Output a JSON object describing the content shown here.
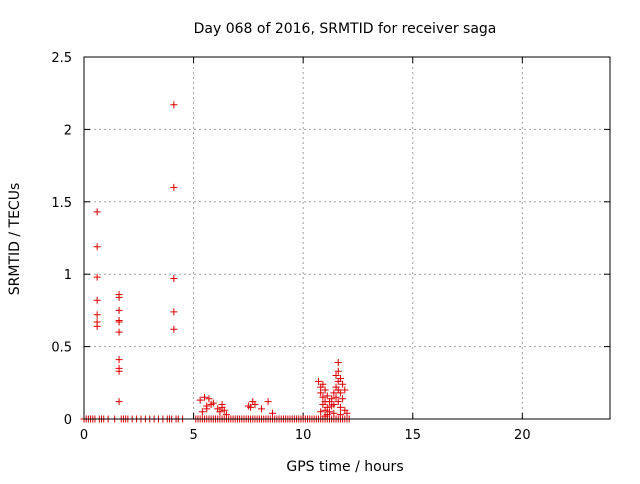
{
  "chart_data": {
    "type": "scatter",
    "title": "Day 068 of 2016, SRMTID for receiver saga",
    "xlabel": "GPS time / hours",
    "ylabel": "SRMTID / TECUs",
    "xlim": [
      0,
      24
    ],
    "ylim": [
      0,
      2.5
    ],
    "x_ticks": [
      0,
      5,
      10,
      15,
      20
    ],
    "y_ticks": [
      0,
      0.5,
      1,
      1.5,
      2,
      2.5
    ],
    "x_tick_labels": [
      "0",
      "5",
      "10",
      "15",
      "20"
    ],
    "y_tick_labels": [
      "0",
      "0.5",
      "1",
      "1.5",
      "2",
      "2.5"
    ],
    "grid": true,
    "marker": "plus",
    "series_color": "#dd0000",
    "points": [
      [
        0.6,
        1.43
      ],
      [
        0.6,
        1.19
      ],
      [
        0.6,
        0.98
      ],
      [
        0.6,
        0.82
      ],
      [
        0.6,
        0.72
      ],
      [
        0.6,
        0.67
      ],
      [
        0.6,
        0.64
      ],
      [
        1.6,
        0.86
      ],
      [
        1.6,
        0.84
      ],
      [
        1.6,
        0.75
      ],
      [
        1.6,
        0.68
      ],
      [
        1.6,
        0.67
      ],
      [
        1.6,
        0.6
      ],
      [
        1.6,
        0.41
      ],
      [
        1.6,
        0.35
      ],
      [
        1.6,
        0.33
      ],
      [
        1.6,
        0.12
      ],
      [
        4.1,
        2.17
      ],
      [
        4.1,
        1.6
      ],
      [
        4.1,
        0.97
      ],
      [
        4.1,
        0.74
      ],
      [
        4.1,
        0.62
      ],
      [
        5.3,
        0.13
      ],
      [
        5.5,
        0.15
      ],
      [
        5.6,
        0.09
      ],
      [
        5.7,
        0.14
      ],
      [
        5.8,
        0.1
      ],
      [
        5.9,
        0.11
      ],
      [
        5.6,
        0.07
      ],
      [
        5.4,
        0.05
      ],
      [
        6.1,
        0.07
      ],
      [
        6.2,
        0.05
      ],
      [
        6.3,
        0.1
      ],
      [
        6.3,
        0.08
      ],
      [
        6.4,
        0.06
      ],
      [
        6.5,
        0.03
      ],
      [
        7.5,
        0.09
      ],
      [
        7.6,
        0.08
      ],
      [
        7.7,
        0.12
      ],
      [
        7.8,
        0.1
      ],
      [
        8.1,
        0.07
      ],
      [
        8.4,
        0.12
      ],
      [
        8.6,
        0.04
      ],
      [
        10.7,
        0.26
      ],
      [
        10.8,
        0.22
      ],
      [
        10.8,
        0.18
      ],
      [
        10.9,
        0.24
      ],
      [
        10.9,
        0.15
      ],
      [
        10.9,
        0.1
      ],
      [
        11.0,
        0.2
      ],
      [
        11.0,
        0.12
      ],
      [
        11.0,
        0.06
      ],
      [
        11.1,
        0.16
      ],
      [
        11.1,
        0.08
      ],
      [
        11.1,
        0.03
      ],
      [
        11.2,
        0.12
      ],
      [
        11.2,
        0.05
      ],
      [
        11.3,
        0.09
      ],
      [
        11.3,
        0.14
      ],
      [
        11.4,
        0.18
      ],
      [
        11.4,
        0.1
      ],
      [
        11.5,
        0.22
      ],
      [
        11.5,
        0.3
      ],
      [
        11.5,
        0.15
      ],
      [
        11.6,
        0.39
      ],
      [
        11.6,
        0.33
      ],
      [
        11.6,
        0.26
      ],
      [
        11.6,
        0.2
      ],
      [
        11.6,
        0.12
      ],
      [
        11.7,
        0.28
      ],
      [
        11.7,
        0.18
      ],
      [
        11.7,
        0.08
      ],
      [
        11.8,
        0.24
      ],
      [
        11.8,
        0.14
      ],
      [
        11.9,
        0.2
      ],
      [
        11.9,
        0.06
      ],
      [
        10.8,
        0.05
      ],
      [
        11.0,
        0.02
      ],
      [
        11.4,
        0.04
      ],
      [
        11.7,
        0.03
      ],
      [
        12.0,
        0.04
      ]
    ],
    "zero_points_x": [
      0.0,
      0.1,
      0.2,
      0.3,
      0.4,
      0.5,
      0.7,
      0.8,
      0.9,
      1.1,
      1.4,
      1.7,
      1.8,
      1.9,
      2.0,
      2.2,
      2.4,
      2.6,
      2.8,
      3.0,
      3.2,
      3.4,
      3.6,
      3.8,
      3.9,
      4.0,
      4.2,
      4.3,
      4.5,
      5.1,
      5.2,
      5.3,
      5.4,
      5.5,
      5.6,
      5.7,
      5.8,
      5.9,
      6.0,
      6.1,
      6.2,
      6.3,
      6.4,
      6.5,
      6.6,
      6.7,
      6.8,
      6.9,
      7.0,
      7.1,
      7.2,
      7.3,
      7.4,
      7.5,
      7.6,
      7.7,
      7.8,
      7.9,
      8.0,
      8.1,
      8.2,
      8.3,
      8.4,
      8.5,
      8.6,
      8.7,
      8.8,
      8.9,
      9.0,
      9.1,
      9.2,
      9.3,
      9.4,
      9.5,
      9.6,
      9.7,
      9.8,
      9.9,
      10.0,
      10.1,
      10.2,
      10.3,
      10.4,
      10.5,
      10.6,
      10.7,
      10.8,
      10.9,
      11.0,
      11.1,
      11.2,
      11.3,
      11.4,
      11.5,
      11.6,
      11.7,
      11.8,
      11.9,
      12.0,
      12.1
    ]
  }
}
